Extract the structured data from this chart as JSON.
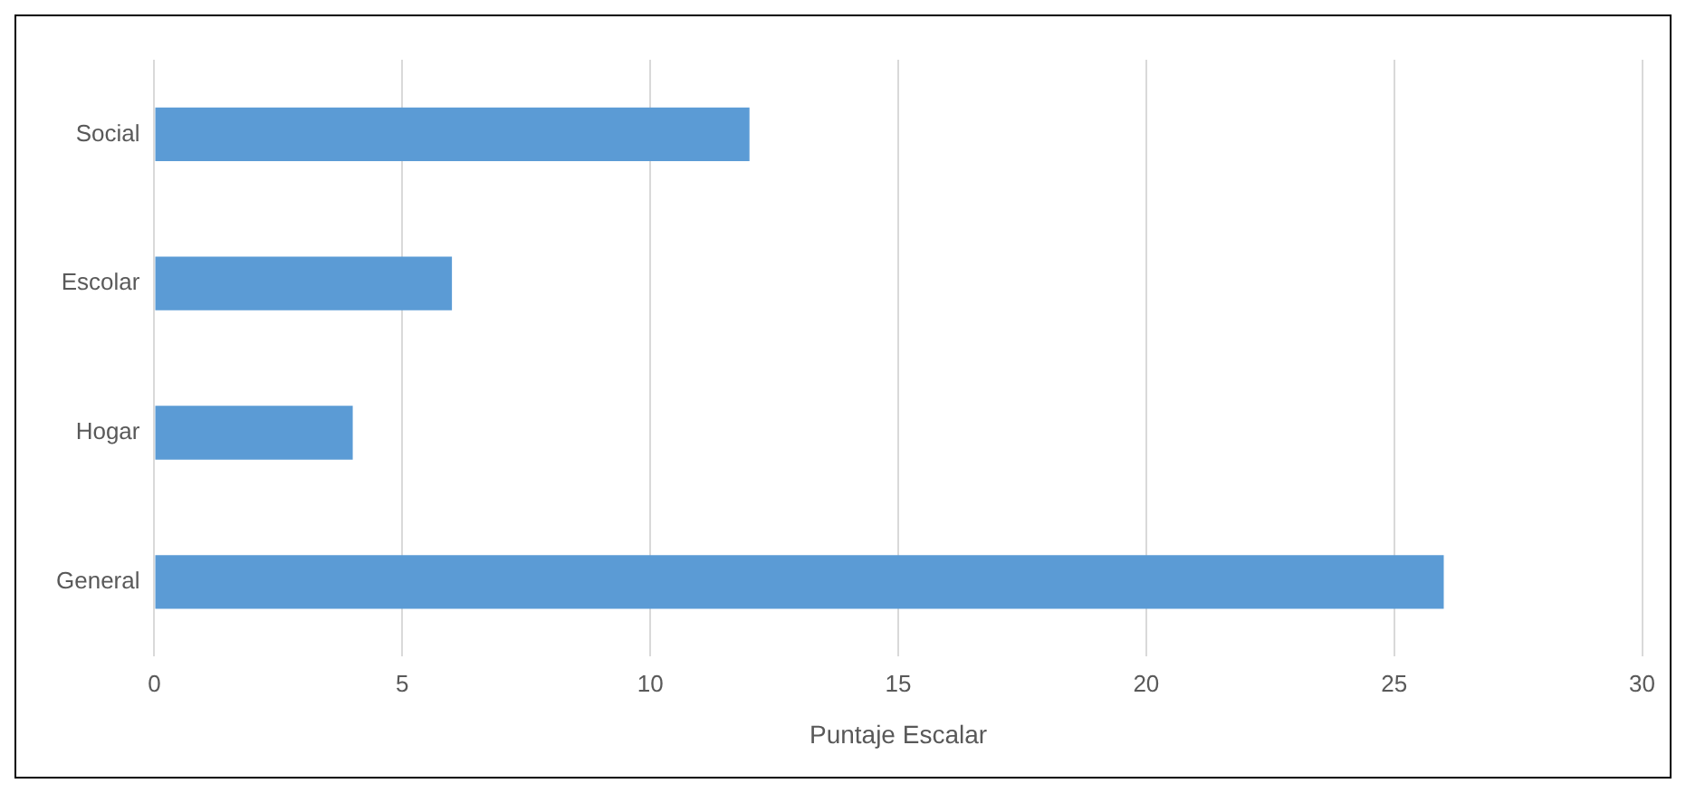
{
  "chart_data": {
    "type": "bar",
    "orientation": "horizontal",
    "xlabel": "Puntaje Escalar",
    "categories": [
      "Social",
      "Escolar",
      "Hogar",
      "General"
    ],
    "values": [
      12,
      6,
      4,
      26
    ],
    "color": "#5b9bd5",
    "xlim": [
      0,
      30
    ],
    "xticks": [
      0,
      5,
      10,
      15,
      20,
      25,
      30
    ],
    "grid": "x",
    "legend": false
  }
}
